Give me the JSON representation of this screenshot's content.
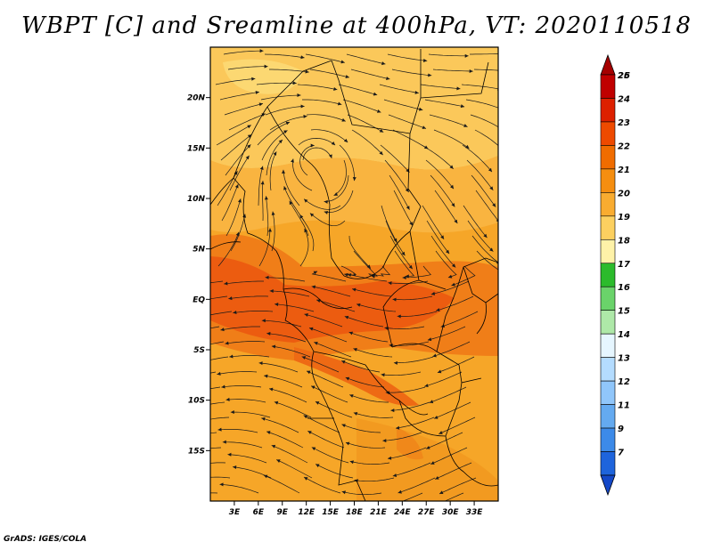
{
  "title": "WBPT [C] and Sreamline at 400hPa, VT: 2020110518",
  "credit": "GrADS: IGES/COLA",
  "map": {
    "lat_range": [
      -20,
      25
    ],
    "lon_range": [
      0,
      36
    ],
    "lat_ticks": [
      {
        "value": 20,
        "label": "20N"
      },
      {
        "value": 15,
        "label": "15N"
      },
      {
        "value": 10,
        "label": "10N"
      },
      {
        "value": 5,
        "label": "5N"
      },
      {
        "value": 0,
        "label": "EQ"
      },
      {
        "value": -5,
        "label": "5S"
      },
      {
        "value": -10,
        "label": "10S"
      },
      {
        "value": -15,
        "label": "15S"
      }
    ],
    "lon_ticks": [
      {
        "value": 3,
        "label": "3E"
      },
      {
        "value": 6,
        "label": "6E"
      },
      {
        "value": 9,
        "label": "9E"
      },
      {
        "value": 12,
        "label": "12E"
      },
      {
        "value": 15,
        "label": "15E"
      },
      {
        "value": 18,
        "label": "18E"
      },
      {
        "value": 21,
        "label": "21E"
      },
      {
        "value": 24,
        "label": "24E"
      },
      {
        "value": 27,
        "label": "27E"
      },
      {
        "value": 30,
        "label": "30E"
      },
      {
        "value": 33,
        "label": "33E"
      }
    ]
  },
  "colorbar": {
    "levels": [
      {
        "label": "26",
        "color": "#a50000"
      },
      {
        "label": "25",
        "color": "#c00000"
      },
      {
        "label": "24",
        "color": "#dd2000"
      },
      {
        "label": "23",
        "color": "#ee4a00"
      },
      {
        "label": "22",
        "color": "#f06c00"
      },
      {
        "label": "21",
        "color": "#f58e10"
      },
      {
        "label": "20",
        "color": "#f9ac30"
      },
      {
        "label": "19",
        "color": "#fcd060"
      },
      {
        "label": "18",
        "color": "#fef2a8"
      },
      {
        "label": "17",
        "color": "#2cbb2c"
      },
      {
        "label": "16",
        "color": "#6ad36a"
      },
      {
        "label": "15",
        "color": "#aee8a8"
      },
      {
        "label": "14",
        "color": "#e6f6ff"
      },
      {
        "label": "13",
        "color": "#b4dcff"
      },
      {
        "label": "12",
        "color": "#90c6fa"
      },
      {
        "label": "11",
        "color": "#64aaf0"
      },
      {
        "label": "9",
        "color": "#3c8ae8"
      },
      {
        "label": "7",
        "color": "#1e64dc"
      },
      {
        "label": "",
        "color": "#1448c8"
      }
    ]
  }
}
